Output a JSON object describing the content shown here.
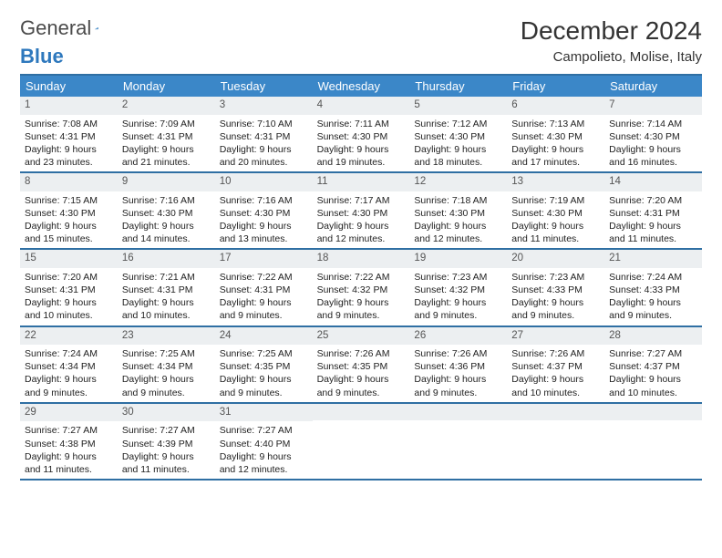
{
  "brand": {
    "word1": "General",
    "word2": "Blue"
  },
  "colors": {
    "header": "#3b87c8",
    "line": "#2f6fa3",
    "dayhead": "#eceff1",
    "logoBlue": "#2e78bd",
    "logoGray": "#4a4a4a"
  },
  "title": "December 2024",
  "location": "Campolieto, Molise, Italy",
  "daysOfWeek": [
    "Sunday",
    "Monday",
    "Tuesday",
    "Wednesday",
    "Thursday",
    "Friday",
    "Saturday"
  ],
  "weeks": [
    [
      {
        "n": "1",
        "sr": "Sunrise: 7:08 AM",
        "ss": "Sunset: 4:31 PM",
        "d1": "Daylight: 9 hours",
        "d2": "and 23 minutes."
      },
      {
        "n": "2",
        "sr": "Sunrise: 7:09 AM",
        "ss": "Sunset: 4:31 PM",
        "d1": "Daylight: 9 hours",
        "d2": "and 21 minutes."
      },
      {
        "n": "3",
        "sr": "Sunrise: 7:10 AM",
        "ss": "Sunset: 4:31 PM",
        "d1": "Daylight: 9 hours",
        "d2": "and 20 minutes."
      },
      {
        "n": "4",
        "sr": "Sunrise: 7:11 AM",
        "ss": "Sunset: 4:30 PM",
        "d1": "Daylight: 9 hours",
        "d2": "and 19 minutes."
      },
      {
        "n": "5",
        "sr": "Sunrise: 7:12 AM",
        "ss": "Sunset: 4:30 PM",
        "d1": "Daylight: 9 hours",
        "d2": "and 18 minutes."
      },
      {
        "n": "6",
        "sr": "Sunrise: 7:13 AM",
        "ss": "Sunset: 4:30 PM",
        "d1": "Daylight: 9 hours",
        "d2": "and 17 minutes."
      },
      {
        "n": "7",
        "sr": "Sunrise: 7:14 AM",
        "ss": "Sunset: 4:30 PM",
        "d1": "Daylight: 9 hours",
        "d2": "and 16 minutes."
      }
    ],
    [
      {
        "n": "8",
        "sr": "Sunrise: 7:15 AM",
        "ss": "Sunset: 4:30 PM",
        "d1": "Daylight: 9 hours",
        "d2": "and 15 minutes."
      },
      {
        "n": "9",
        "sr": "Sunrise: 7:16 AM",
        "ss": "Sunset: 4:30 PM",
        "d1": "Daylight: 9 hours",
        "d2": "and 14 minutes."
      },
      {
        "n": "10",
        "sr": "Sunrise: 7:16 AM",
        "ss": "Sunset: 4:30 PM",
        "d1": "Daylight: 9 hours",
        "d2": "and 13 minutes."
      },
      {
        "n": "11",
        "sr": "Sunrise: 7:17 AM",
        "ss": "Sunset: 4:30 PM",
        "d1": "Daylight: 9 hours",
        "d2": "and 12 minutes."
      },
      {
        "n": "12",
        "sr": "Sunrise: 7:18 AM",
        "ss": "Sunset: 4:30 PM",
        "d1": "Daylight: 9 hours",
        "d2": "and 12 minutes."
      },
      {
        "n": "13",
        "sr": "Sunrise: 7:19 AM",
        "ss": "Sunset: 4:30 PM",
        "d1": "Daylight: 9 hours",
        "d2": "and 11 minutes."
      },
      {
        "n": "14",
        "sr": "Sunrise: 7:20 AM",
        "ss": "Sunset: 4:31 PM",
        "d1": "Daylight: 9 hours",
        "d2": "and 11 minutes."
      }
    ],
    [
      {
        "n": "15",
        "sr": "Sunrise: 7:20 AM",
        "ss": "Sunset: 4:31 PM",
        "d1": "Daylight: 9 hours",
        "d2": "and 10 minutes."
      },
      {
        "n": "16",
        "sr": "Sunrise: 7:21 AM",
        "ss": "Sunset: 4:31 PM",
        "d1": "Daylight: 9 hours",
        "d2": "and 10 minutes."
      },
      {
        "n": "17",
        "sr": "Sunrise: 7:22 AM",
        "ss": "Sunset: 4:31 PM",
        "d1": "Daylight: 9 hours",
        "d2": "and 9 minutes."
      },
      {
        "n": "18",
        "sr": "Sunrise: 7:22 AM",
        "ss": "Sunset: 4:32 PM",
        "d1": "Daylight: 9 hours",
        "d2": "and 9 minutes."
      },
      {
        "n": "19",
        "sr": "Sunrise: 7:23 AM",
        "ss": "Sunset: 4:32 PM",
        "d1": "Daylight: 9 hours",
        "d2": "and 9 minutes."
      },
      {
        "n": "20",
        "sr": "Sunrise: 7:23 AM",
        "ss": "Sunset: 4:33 PM",
        "d1": "Daylight: 9 hours",
        "d2": "and 9 minutes."
      },
      {
        "n": "21",
        "sr": "Sunrise: 7:24 AM",
        "ss": "Sunset: 4:33 PM",
        "d1": "Daylight: 9 hours",
        "d2": "and 9 minutes."
      }
    ],
    [
      {
        "n": "22",
        "sr": "Sunrise: 7:24 AM",
        "ss": "Sunset: 4:34 PM",
        "d1": "Daylight: 9 hours",
        "d2": "and 9 minutes."
      },
      {
        "n": "23",
        "sr": "Sunrise: 7:25 AM",
        "ss": "Sunset: 4:34 PM",
        "d1": "Daylight: 9 hours",
        "d2": "and 9 minutes."
      },
      {
        "n": "24",
        "sr": "Sunrise: 7:25 AM",
        "ss": "Sunset: 4:35 PM",
        "d1": "Daylight: 9 hours",
        "d2": "and 9 minutes."
      },
      {
        "n": "25",
        "sr": "Sunrise: 7:26 AM",
        "ss": "Sunset: 4:35 PM",
        "d1": "Daylight: 9 hours",
        "d2": "and 9 minutes."
      },
      {
        "n": "26",
        "sr": "Sunrise: 7:26 AM",
        "ss": "Sunset: 4:36 PM",
        "d1": "Daylight: 9 hours",
        "d2": "and 9 minutes."
      },
      {
        "n": "27",
        "sr": "Sunrise: 7:26 AM",
        "ss": "Sunset: 4:37 PM",
        "d1": "Daylight: 9 hours",
        "d2": "and 10 minutes."
      },
      {
        "n": "28",
        "sr": "Sunrise: 7:27 AM",
        "ss": "Sunset: 4:37 PM",
        "d1": "Daylight: 9 hours",
        "d2": "and 10 minutes."
      }
    ],
    [
      {
        "n": "29",
        "sr": "Sunrise: 7:27 AM",
        "ss": "Sunset: 4:38 PM",
        "d1": "Daylight: 9 hours",
        "d2": "and 11 minutes."
      },
      {
        "n": "30",
        "sr": "Sunrise: 7:27 AM",
        "ss": "Sunset: 4:39 PM",
        "d1": "Daylight: 9 hours",
        "d2": "and 11 minutes."
      },
      {
        "n": "31",
        "sr": "Sunrise: 7:27 AM",
        "ss": "Sunset: 4:40 PM",
        "d1": "Daylight: 9 hours",
        "d2": "and 12 minutes."
      },
      {
        "empty": true
      },
      {
        "empty": true
      },
      {
        "empty": true
      },
      {
        "empty": true
      }
    ]
  ]
}
